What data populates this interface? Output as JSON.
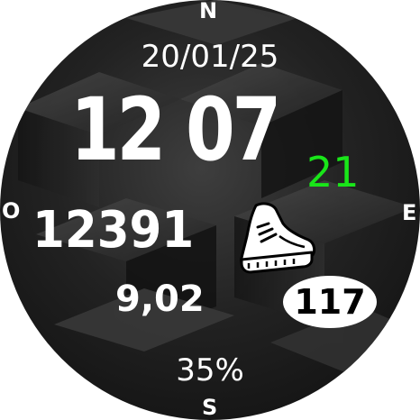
{
  "watch_face": {
    "compass": {
      "north": "N",
      "west": "O",
      "east": "E",
      "south": "S"
    },
    "date": "20/01/25",
    "time": {
      "hours": "12",
      "minutes": "07",
      "seconds": "21"
    },
    "steps": "12391",
    "distance": "9,02",
    "heart_rate": "117",
    "battery": "35%",
    "icons": {
      "shoe": "running-shoe-icon"
    },
    "colors": {
      "background": "#1c1c1c",
      "text": "#ffffff",
      "seconds": "#19e619",
      "heart_rate_badge": "#ffffff",
      "heart_rate_text": "#000000"
    }
  }
}
